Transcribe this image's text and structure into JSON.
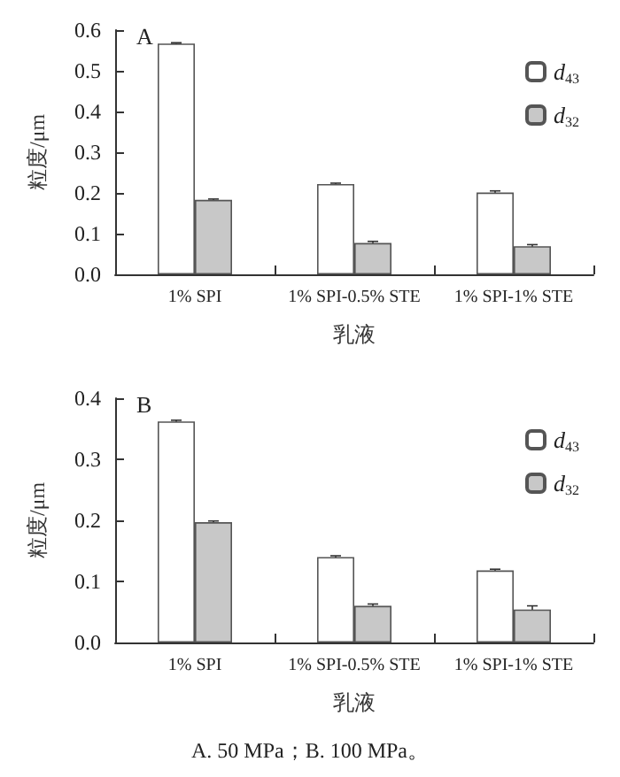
{
  "chart_data": [
    {
      "type": "bar",
      "title": "A",
      "xlabel": "乳液",
      "ylabel": "粒度/μm",
      "categories": [
        "1% SPI",
        "1% SPI-0.5% STE",
        "1% SPI-1% STE"
      ],
      "series": [
        {
          "name": "d$_{43}$",
          "color": "#ffffff",
          "values": [
            0.567,
            0.222,
            0.201
          ],
          "errors": [
            0.002,
            0.002,
            0.004
          ]
        },
        {
          "name": "d$_{32}$",
          "color": "#c8c8c8",
          "values": [
            0.183,
            0.077,
            0.069
          ],
          "errors": [
            0.002,
            0.004,
            0.004
          ]
        }
      ],
      "ylim": [
        0,
        0.6
      ],
      "yticks": [
        {
          "value": 0,
          "label": "0.0"
        },
        0.1,
        0.2,
        0.3,
        0.4,
        0.5,
        0.6
      ],
      "grid": false,
      "legend": "top right"
    },
    {
      "type": "bar",
      "title": "B",
      "xlabel": "乳液",
      "ylabel": "粒度/μm",
      "categories": [
        "1% SPI",
        "1% SPI-0.5% STE",
        "1% SPI-1% STE"
      ],
      "series": [
        {
          "name": "d$_{43}$",
          "color": "#ffffff",
          "values": [
            0.362,
            0.14,
            0.118
          ],
          "errors": [
            0.002,
            0.002,
            0.002
          ]
        },
        {
          "name": "d$_{32}$",
          "color": "#c8c8c8",
          "values": [
            0.197,
            0.06,
            0.054
          ],
          "errors": [
            0.002,
            0.003,
            0.006
          ]
        }
      ],
      "ylim": [
        0,
        0.4
      ],
      "yticks": [
        {
          "value": 0,
          "label": "0.0"
        },
        0.1,
        0.2,
        0.3,
        0.4
      ],
      "grid": false,
      "legend": "top right",
      "annotations": [
        "A. 50 MPa；B. 100 MPa。"
      ]
    }
  ]
}
